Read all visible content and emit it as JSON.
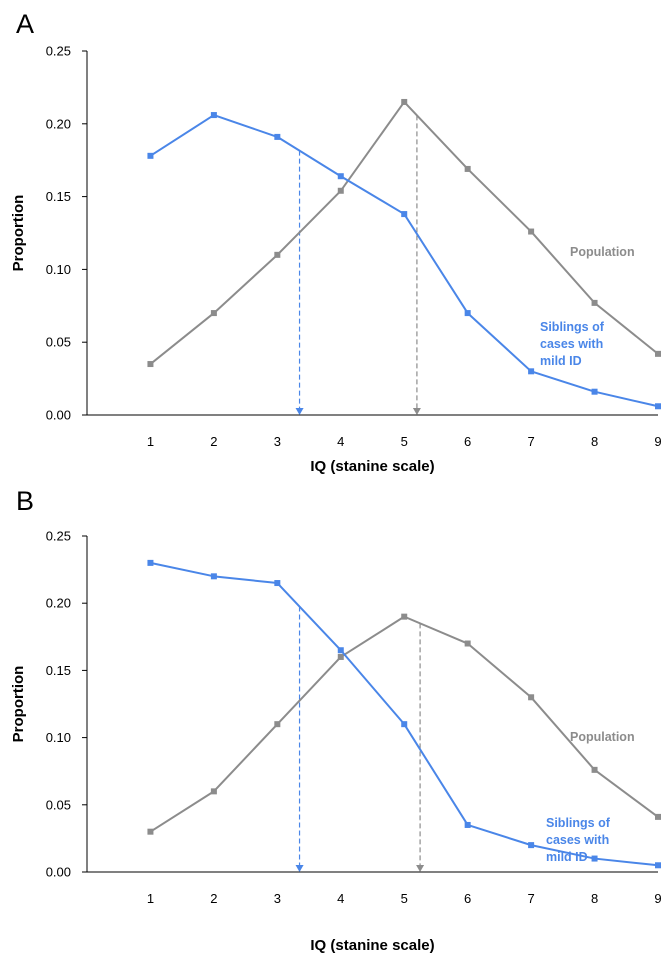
{
  "colors": {
    "siblings": "#4a86e8",
    "population": "#8c8c8c",
    "axis": "#000000"
  },
  "chart_data": [
    {
      "type": "line",
      "panel_label": "A",
      "xlabel": "IQ (stanine scale)",
      "ylabel": "Proportion",
      "ylim": [
        0,
        0.25
      ],
      "yticks": [
        0,
        0.05,
        0.1,
        0.15,
        0.2,
        0.25
      ],
      "ytick_labels": [
        "0.00",
        "0.05",
        "0.10",
        "0.15",
        "0.20",
        "0.25"
      ],
      "x": [
        1,
        2,
        3,
        4,
        5,
        6,
        7,
        8,
        9
      ],
      "xlim": [
        0,
        9
      ],
      "grid": false,
      "series": [
        {
          "key": "siblings",
          "label_lines": [
            "Siblings of",
            "cases with",
            "mild ID"
          ],
          "color": "#4a86e8",
          "values": [
            0.178,
            0.206,
            0.191,
            0.164,
            0.138,
            0.07,
            0.03,
            0.016,
            0.006
          ],
          "mean_x": 3.35
        },
        {
          "key": "population",
          "label_lines": [
            "Population"
          ],
          "color": "#8c8c8c",
          "values": [
            0.035,
            0.07,
            0.11,
            0.154,
            0.215,
            0.169,
            0.126,
            0.077,
            0.042
          ],
          "mean_x": 5.2
        }
      ]
    },
    {
      "type": "line",
      "panel_label": "B",
      "xlabel": "IQ (stanine scale)",
      "ylabel": "Proportion",
      "ylim": [
        0,
        0.25
      ],
      "yticks": [
        0,
        0.05,
        0.1,
        0.15,
        0.2,
        0.25
      ],
      "ytick_labels": [
        "0.00",
        "0.05",
        "0.10",
        "0.15",
        "0.20",
        "0.25"
      ],
      "x": [
        1,
        2,
        3,
        4,
        5,
        6,
        7,
        8,
        9
      ],
      "xlim": [
        0,
        9
      ],
      "grid": false,
      "series": [
        {
          "key": "siblings",
          "label_lines": [
            "Siblings of",
            "cases with",
            "mild ID"
          ],
          "color": "#4a86e8",
          "values": [
            0.23,
            0.22,
            0.215,
            0.165,
            0.11,
            0.035,
            0.02,
            0.01,
            0.005
          ],
          "mean_x": 3.35
        },
        {
          "key": "population",
          "label_lines": [
            "Population"
          ],
          "color": "#8c8c8c",
          "values": [
            0.03,
            0.06,
            0.11,
            0.16,
            0.19,
            0.17,
            0.13,
            0.076,
            0.041
          ],
          "mean_x": 5.25
        }
      ]
    }
  ]
}
